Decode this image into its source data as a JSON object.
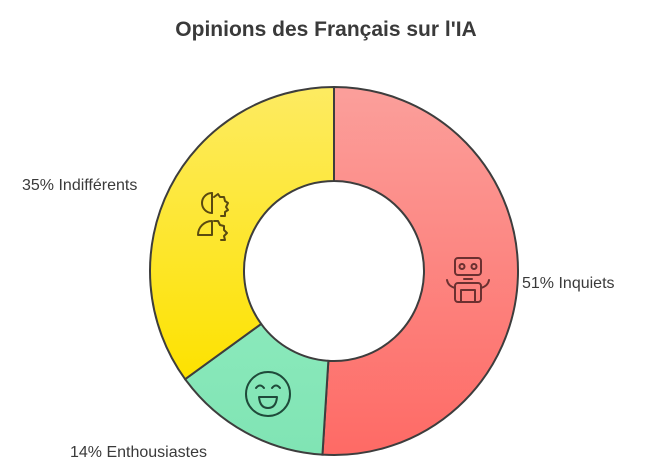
{
  "chart_data": {
    "type": "pie",
    "variant": "donut",
    "title": "Opinions des Français sur l'IA",
    "slices": [
      {
        "label": "51% Inquiets",
        "value": 51,
        "color": "#fe7b76",
        "icon": "robot-icon"
      },
      {
        "label": "14% Enthousiastes",
        "value": 14,
        "color": "#86e7b8",
        "icon": "smiling-face-icon"
      },
      {
        "label": "35% Indifférents",
        "value": 35,
        "color": "#fde530",
        "icon": "human-gear-icon"
      }
    ]
  }
}
